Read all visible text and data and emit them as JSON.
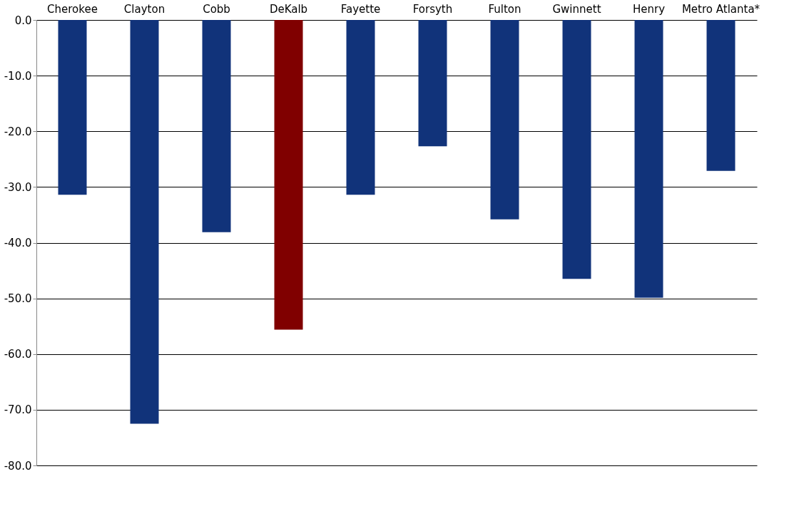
{
  "chart_data": {
    "type": "bar",
    "categories": [
      "Cherokee",
      "Clayton",
      "Cobb",
      "DeKalb",
      "Fayette",
      "Forsyth",
      "Fulton",
      "Gwinnett",
      "Henry",
      "Metro Atlanta*"
    ],
    "values": [
      -31.4,
      -72.5,
      -38.1,
      -55.6,
      -31.4,
      -22.7,
      -35.8,
      -46.5,
      -49.9,
      -27.1
    ],
    "colors": [
      "#11337a",
      "#11337a",
      "#11337a",
      "#800000",
      "#11337a",
      "#11337a",
      "#11337a",
      "#11337a",
      "#11337a",
      "#11337a"
    ],
    "ylim": [
      -80,
      0
    ],
    "yticks": [
      {
        "value": 0,
        "label": "0.0"
      },
      {
        "value": -10,
        "label": "-10.0"
      },
      {
        "value": -20,
        "label": "-20.0"
      },
      {
        "value": -30,
        "label": "-30.0"
      },
      {
        "value": -40,
        "label": "-40.0"
      },
      {
        "value": -50,
        "label": "-50.0"
      },
      {
        "value": -60,
        "label": "-60.0"
      },
      {
        "value": -70,
        "label": "-70.0"
      },
      {
        "value": -80,
        "label": "-80.0"
      }
    ],
    "grid": "y"
  }
}
